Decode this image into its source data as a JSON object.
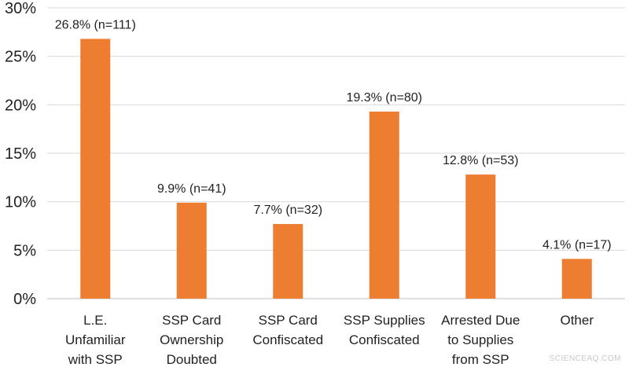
{
  "chart_data": {
    "type": "bar",
    "categories": [
      [
        "L.E.",
        "Unfamiliar",
        "with SSP"
      ],
      [
        "SSP Card",
        "Ownership",
        "Doubted"
      ],
      [
        "SSP Card",
        "Confiscated"
      ],
      [
        "SSP Supplies",
        "Confiscated"
      ],
      [
        "Arrested Due",
        "to Supplies",
        "from SSP"
      ],
      [
        "Other"
      ]
    ],
    "values": [
      26.8,
      9.9,
      7.7,
      19.3,
      12.8,
      4.1
    ],
    "data_labels": [
      "26.8% (n=111)",
      "9.9% (n=41)",
      "7.7% (n=32)",
      "19.3% (n=80)",
      "12.8% (n=53)",
      "4.1% (n=17)"
    ],
    "y_ticks": [
      "0%",
      "5%",
      "10%",
      "15%",
      "20%",
      "25%",
      "30%"
    ],
    "ylim": [
      0,
      30
    ],
    "grid": true,
    "bar_color": "#ED7D31",
    "grid_color": "#D9D9D9",
    "title": "",
    "xlabel": "",
    "ylabel": ""
  },
  "watermark": "SCIENCEAQ.COM"
}
